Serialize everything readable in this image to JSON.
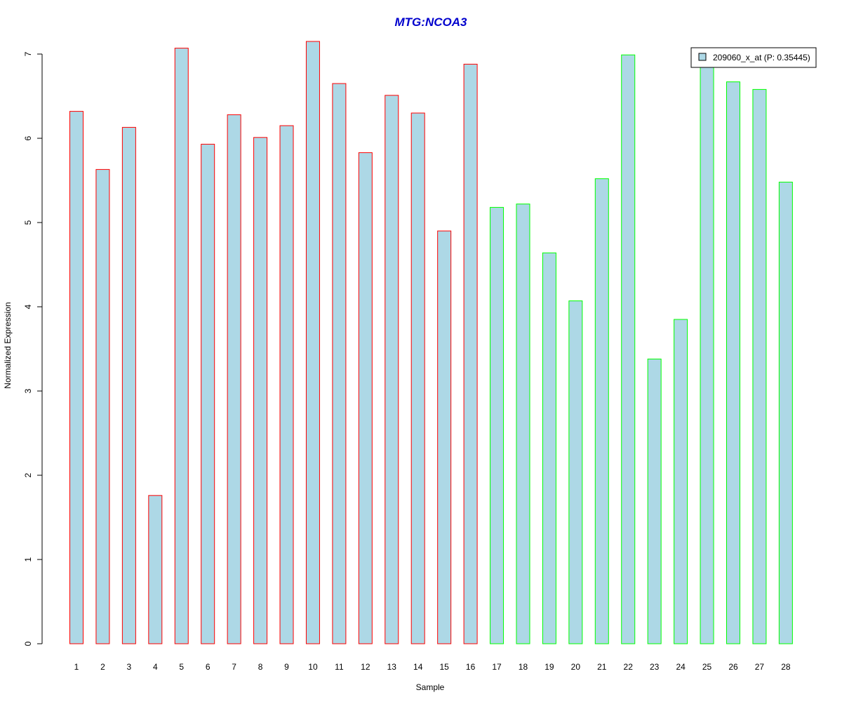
{
  "chart_data": {
    "type": "bar",
    "title": "MTG:NCOA3",
    "xlabel": "Sample",
    "ylabel": "Normalized Expression",
    "categories": [
      "1",
      "2",
      "3",
      "4",
      "5",
      "6",
      "7",
      "8",
      "9",
      "10",
      "11",
      "12",
      "13",
      "14",
      "15",
      "16",
      "17",
      "18",
      "19",
      "20",
      "21",
      "22",
      "23",
      "24",
      "25",
      "26",
      "27",
      "28"
    ],
    "values": [
      6.32,
      5.63,
      6.13,
      1.76,
      7.07,
      5.93,
      6.28,
      6.01,
      6.15,
      7.15,
      6.65,
      5.83,
      6.51,
      6.3,
      4.9,
      6.88,
      5.18,
      5.22,
      4.64,
      4.07,
      5.52,
      6.99,
      3.38,
      3.85,
      6.93,
      6.67,
      6.58,
      5.48
    ],
    "groups": [
      1,
      1,
      1,
      1,
      1,
      1,
      1,
      1,
      1,
      1,
      1,
      1,
      1,
      1,
      1,
      1,
      2,
      2,
      2,
      2,
      2,
      2,
      2,
      2,
      2,
      2,
      2,
      2
    ],
    "yticks": [
      "0",
      "1",
      "2",
      "3",
      "4",
      "5",
      "6",
      "7"
    ],
    "ylim": [
      0,
      7.2
    ],
    "grid": false,
    "legend": {
      "label": "209060_x_at (P: 0.35445)",
      "position": "top-right"
    },
    "colors": {
      "bar_fill": "#add8e6",
      "group1_border": "#ff0000",
      "group2_border": "#00ff00",
      "title": "#0000cd"
    }
  }
}
